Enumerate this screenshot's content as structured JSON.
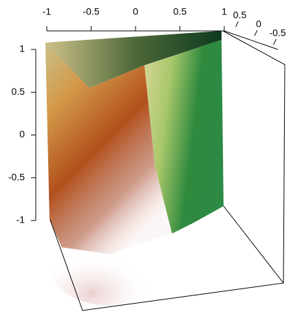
{
  "chart_data": {
    "type": "volume3d",
    "xlim": [
      -1,
      1
    ],
    "xticks": [
      -1,
      -0.5,
      0,
      0.5,
      1
    ],
    "ylim": [
      -1,
      1
    ],
    "yticks": [
      -1,
      -0.5,
      0,
      0.5,
      1
    ],
    "zlim": [
      -1,
      1
    ],
    "zticks": [
      -0.5,
      0,
      0.5
    ]
  }
}
